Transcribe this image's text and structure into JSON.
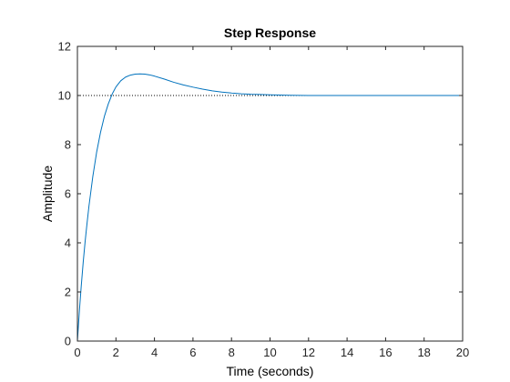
{
  "chart_data": {
    "type": "line",
    "title": "Step Response",
    "xlabel": "Time (seconds)",
    "ylabel": "Amplitude",
    "xlim": [
      0,
      20
    ],
    "ylim": [
      0,
      12
    ],
    "x_ticks": [
      "0",
      "2",
      "4",
      "6",
      "8",
      "10",
      "12",
      "14",
      "16",
      "18",
      "20"
    ],
    "y_ticks": [
      "0",
      "2",
      "4",
      "6",
      "8",
      "10",
      "12"
    ],
    "grid": false,
    "series": [
      {
        "color": "#0072bd",
        "x": [
          0,
          0.1,
          0.2,
          0.3,
          0.4,
          0.5,
          0.6,
          0.8,
          1.0,
          1.2,
          1.4,
          1.6,
          1.8,
          2.0,
          2.25,
          2.5,
          2.75,
          3.0,
          3.25,
          3.5,
          3.75,
          4.0,
          4.5,
          5.0,
          5.5,
          6.0,
          6.5,
          7.0,
          7.5,
          8.0,
          8.5,
          9.0,
          9.5,
          10.0,
          11.0,
          12.0,
          13.0,
          14.0,
          16.0,
          18.0,
          20.0
        ],
        "y": [
          0,
          1.2,
          2.25,
          3.2,
          4.05,
          4.8,
          5.5,
          6.7,
          7.7,
          8.5,
          9.15,
          9.65,
          10.05,
          10.35,
          10.6,
          10.75,
          10.83,
          10.87,
          10.88,
          10.87,
          10.84,
          10.79,
          10.67,
          10.54,
          10.43,
          10.34,
          10.26,
          10.19,
          10.14,
          10.1,
          10.07,
          10.05,
          10.04,
          10.03,
          10.01,
          10.0,
          10.0,
          10.0,
          10.0,
          10.0,
          10.0
        ]
      }
    ],
    "reference_line": {
      "y": 10,
      "style": "dotted",
      "color": "#000000"
    }
  }
}
